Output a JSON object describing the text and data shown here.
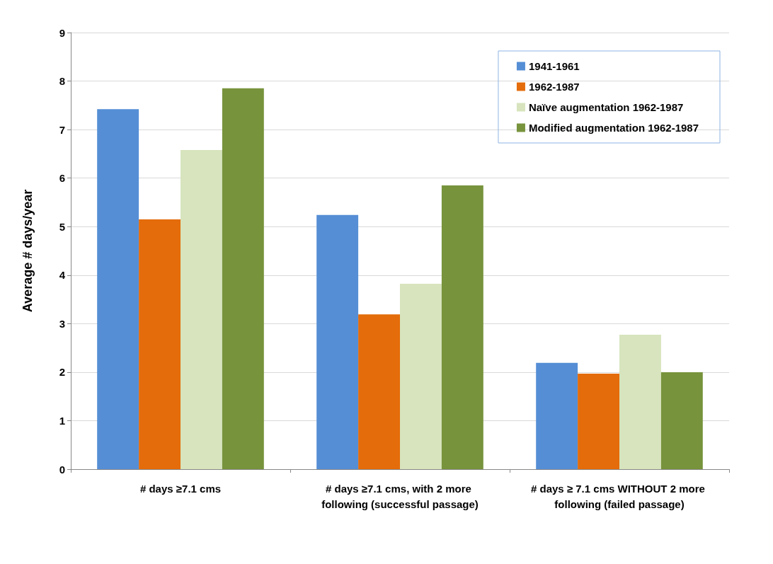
{
  "chart_data": {
    "type": "bar",
    "ylabel": "Average # days/year",
    "categories": [
      "# days ≥7.1 cms",
      "# days ≥7.1 cms, with 2 more following (successful passage)",
      "# days ≥ 7.1 cms WITHOUT 2 more following (failed passage)"
    ],
    "series": [
      {
        "name": "1941-1961",
        "color": "#558ed5",
        "values": [
          7.42,
          5.24,
          2.19
        ]
      },
      {
        "name": "1962-1987",
        "color": "#e46c0a",
        "values": [
          5.15,
          3.19,
          1.97
        ]
      },
      {
        "name": "Naïve augmentation 1962-1987",
        "color": "#d7e4bd",
        "values": [
          6.58,
          3.82,
          2.77
        ]
      },
      {
        "name": "Modified augmentation 1962-1987",
        "color": "#77933c",
        "values": [
          7.85,
          5.85,
          2.0
        ]
      }
    ],
    "ylim": [
      0,
      9
    ],
    "yticks": [
      0,
      1,
      2,
      3,
      4,
      5,
      6,
      7,
      8,
      9
    ],
    "grid": "y",
    "legend": "top right"
  }
}
